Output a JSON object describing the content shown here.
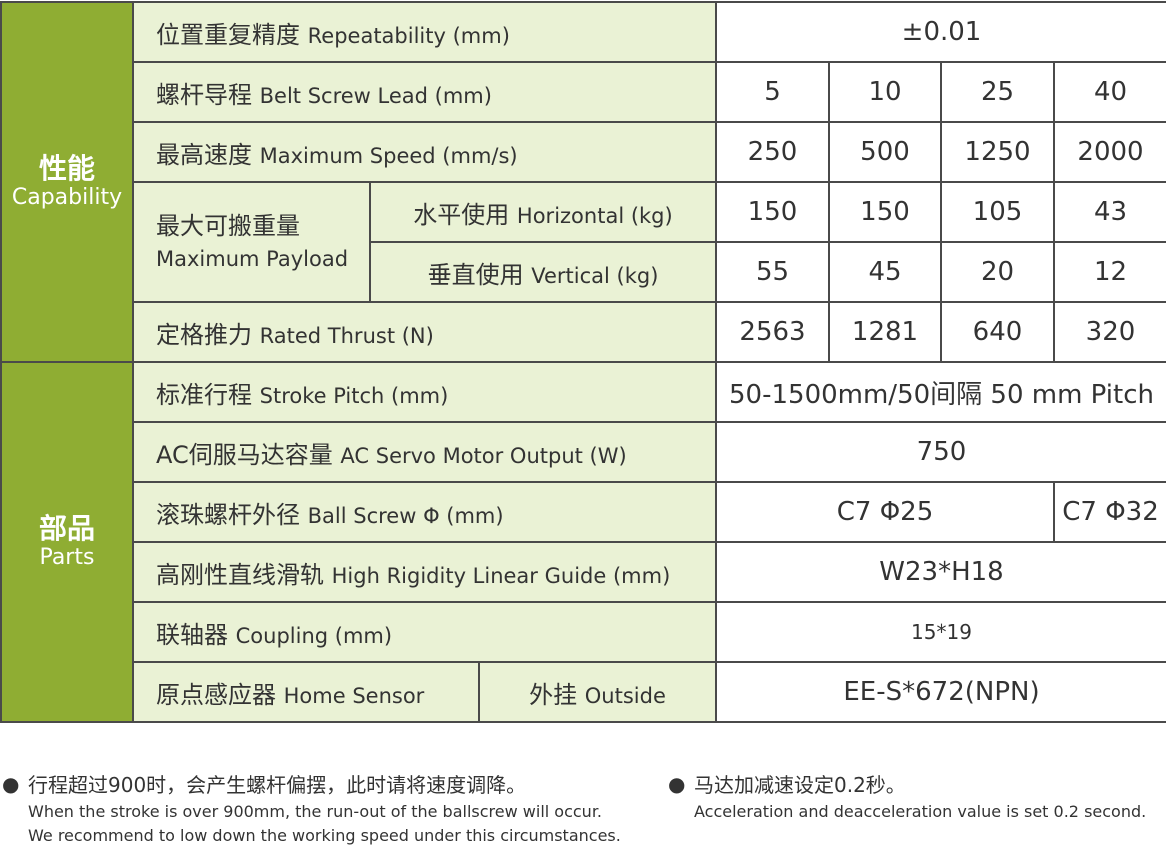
{
  "capability": {
    "zh": "性能",
    "en": "Capability"
  },
  "parts": {
    "zh": "部品",
    "en": "Parts"
  },
  "rows": {
    "repeatability": {
      "zh": "位置重复精度",
      "en": "Repeatability (mm)",
      "value": "±0.01"
    },
    "lead": {
      "zh": "螺杆导程",
      "en": "Belt Screw Lead (mm)",
      "values": [
        "5",
        "10",
        "25",
        "40"
      ]
    },
    "speed": {
      "zh": "最高速度",
      "en": "Maximum Speed (mm/s)",
      "values": [
        "250",
        "500",
        "1250",
        "2000"
      ]
    },
    "payload": {
      "zh": "最大可搬重量",
      "en": "Maximum Payload",
      "horizontal": {
        "zh": "水平使用",
        "en": "Horizontal (kg)",
        "values": [
          "150",
          "150",
          "105",
          "43"
        ]
      },
      "vertical": {
        "zh": "垂直使用",
        "en": "Vertical (kg)",
        "values": [
          "55",
          "45",
          "20",
          "12"
        ]
      }
    },
    "thrust": {
      "zh": "定格推力",
      "en": "Rated Thrust (N)",
      "values": [
        "2563",
        "1281",
        "640",
        "320"
      ]
    },
    "stroke": {
      "zh": "标准行程",
      "en": "Stroke Pitch (mm)",
      "value": "50-1500mm/50间隔 50 mm Pitch"
    },
    "motor": {
      "zh": "AC伺服马达容量",
      "en": "AC Servo Motor Output (W)",
      "value": "750"
    },
    "ballscrew": {
      "zh": "滚珠螺杆外径",
      "en": "Ball Screw Φ (mm)",
      "values": [
        "C7 Φ25",
        "C7 Φ32"
      ]
    },
    "guide": {
      "zh": "高刚性直线滑轨",
      "en": "High Rigidity Linear Guide (mm)",
      "value": "W23*H18"
    },
    "coupling": {
      "zh": "联轴器",
      "en": "Coupling (mm)",
      "value": "15*19"
    },
    "sensor": {
      "zh": "原点感应器",
      "en": "Home Sensor",
      "sub_zh": "外挂",
      "sub_en": "Outside",
      "value": "EE-S*672(NPN)"
    }
  },
  "notes": [
    {
      "zh": "行程超过900时，会产生螺杆偏摆，此时请将速度调降。",
      "en1": "When the stroke is over 900mm, the run-out of the ballscrew will occur.",
      "en2": "We recommend to low down the working speed under this circumstances."
    },
    {
      "zh": "马达加减速设定0.2秒。",
      "en1": "Acceleration and deacceleration value is set 0.2 second."
    }
  ]
}
